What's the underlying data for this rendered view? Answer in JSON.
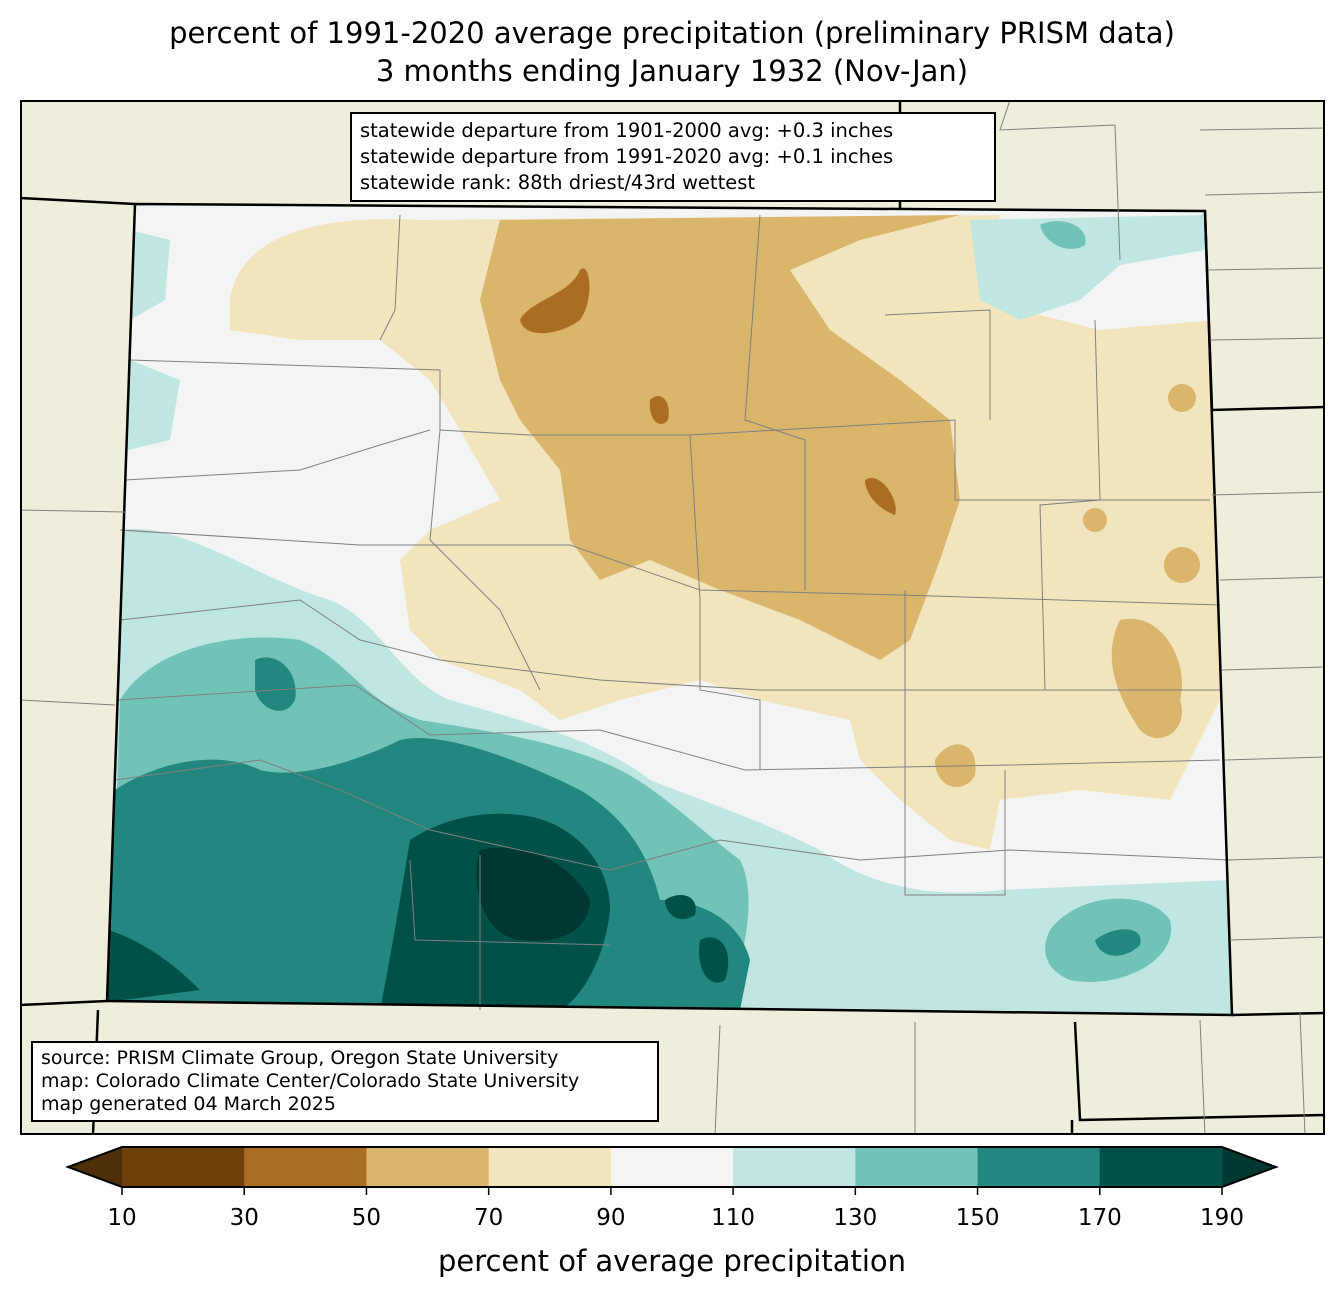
{
  "title": {
    "line1": "percent of 1991-2020 average precipitation (preliminary PRISM data)",
    "line2": "3 months ending January 1932 (Nov-Jan)"
  },
  "stats": {
    "line1": "statewide departure from 1901-2000 avg: +0.3 inches",
    "line2": "statewide departure from 1991-2020 avg: +0.1 inches",
    "line3": "statewide rank: 88th driest/43rd wettest"
  },
  "credits": {
    "line1": "source: PRISM Climate Group, Oregon State University",
    "line2": "map: Colorado Climate Center/Colorado State University",
    "line3": "map generated 04 March 2025"
  },
  "colorbar": {
    "label": "percent of average precipitation",
    "ticks": [
      "10",
      "30",
      "50",
      "70",
      "90",
      "110",
      "130",
      "150",
      "170",
      "190"
    ],
    "colors": [
      "#70400a",
      "#ab6d22",
      "#dab56c",
      "#f2e4bd",
      "#f3f5f4",
      "#bfe6e1",
      "#71c2b7",
      "#22877e",
      "#005249"
    ],
    "under_color": "#4f2f07",
    "over_color": "#003730"
  },
  "colors": {
    "land": "#efeedc",
    "border": "#000000",
    "county": "#808080"
  }
}
